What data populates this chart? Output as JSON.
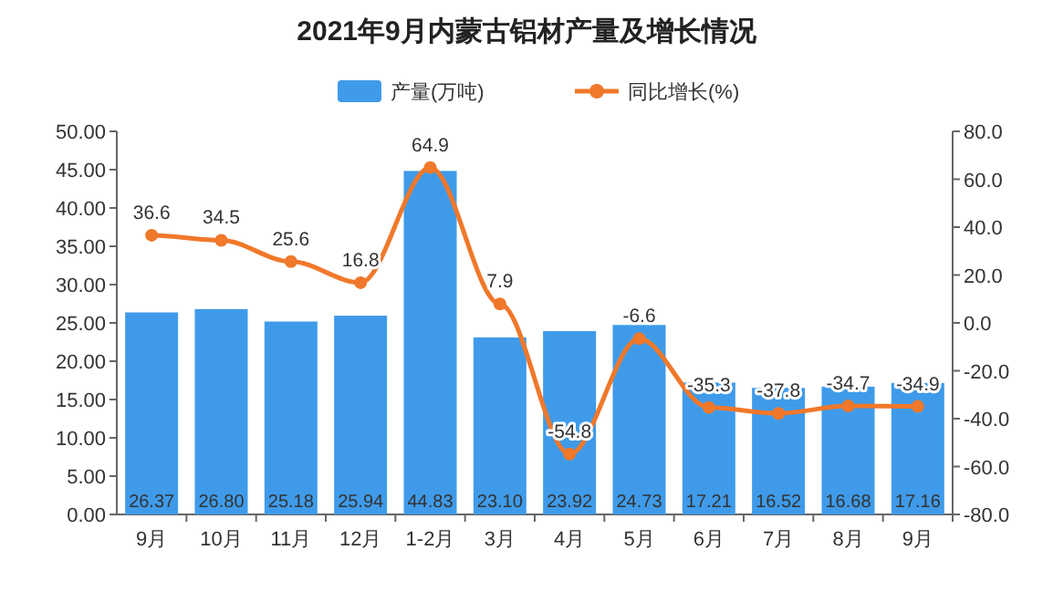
{
  "chart_data": {
    "type": "bar",
    "title": "2021年9月内蒙古铝材产量及增长情况",
    "categories": [
      "9月",
      "10月",
      "11月",
      "12月",
      "1-2月",
      "3月",
      "4月",
      "5月",
      "6月",
      "7月",
      "8月",
      "9月"
    ],
    "series": [
      {
        "name": "产量(万吨)",
        "color": "#3f9bea",
        "values": [
          26.37,
          26.8,
          25.18,
          25.94,
          44.83,
          23.1,
          23.92,
          24.73,
          17.21,
          16.52,
          16.68,
          17.16
        ],
        "value_labels": [
          "26.37",
          "26.80",
          "25.18",
          "25.94",
          "44.83",
          "23.10",
          "23.92",
          "24.73",
          "17.21",
          "16.52",
          "16.68",
          "17.16"
        ]
      },
      {
        "name": "同比增长(%)",
        "type": "line",
        "axis": "y2",
        "color": "#f0782a",
        "marker": "circle",
        "line_style": "solid",
        "values": [
          36.6,
          34.5,
          25.6,
          16.8,
          64.9,
          7.9,
          -54.8,
          -6.6,
          -35.3,
          -37.8,
          -34.7,
          -34.9
        ],
        "value_labels": [
          "36.6",
          "34.5",
          "25.6",
          "16.8",
          "64.9",
          "7.9",
          "-54.8",
          "-6.6",
          "-35.3",
          "-37.8",
          "-34.7",
          "-34.9"
        ]
      }
    ],
    "ylim": [
      0,
      50
    ],
    "yticks": [
      {
        "value": 0,
        "label": "0.00"
      },
      {
        "value": 5,
        "label": "5.00"
      },
      {
        "value": 10,
        "label": "10.00"
      },
      {
        "value": 15,
        "label": "15.00"
      },
      {
        "value": 20,
        "label": "20.00"
      },
      {
        "value": 25,
        "label": "25.00"
      },
      {
        "value": 30,
        "label": "30.00"
      },
      {
        "value": 35,
        "label": "35.00"
      },
      {
        "value": 40,
        "label": "40.00"
      },
      {
        "value": 45,
        "label": "45.00"
      },
      {
        "value": 50,
        "label": "50.00"
      }
    ],
    "y2lim": [
      -80,
      80
    ],
    "y2ticks": [
      {
        "value": -80,
        "label": "-80.0"
      },
      {
        "value": -60,
        "label": "-60.0"
      },
      {
        "value": -40,
        "label": "-40.0"
      },
      {
        "value": -20,
        "label": "-20.0"
      },
      {
        "value": 0,
        "label": "0.0"
      },
      {
        "value": 20,
        "label": "20.0"
      },
      {
        "value": 40,
        "label": "40.0"
      },
      {
        "value": 60,
        "label": "60.0"
      },
      {
        "value": 80,
        "label": "80.0"
      }
    ],
    "legend": "top",
    "grid": false
  }
}
